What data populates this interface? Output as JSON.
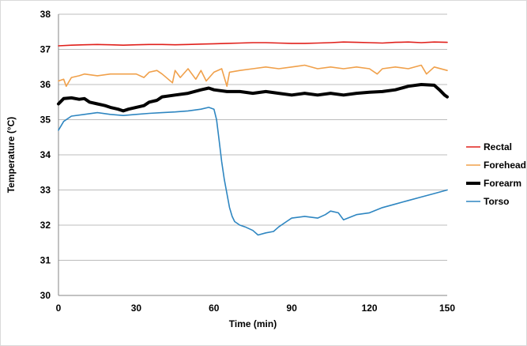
{
  "chart_data": {
    "type": "line",
    "title": "",
    "xlabel": "Time (min)",
    "ylabel": "Temperature (°C)",
    "xlim": [
      0,
      150
    ],
    "ylim": [
      30,
      38
    ],
    "x_ticks": [
      "0",
      "30",
      "60",
      "90",
      "120",
      "150"
    ],
    "x_tick_values": [
      0,
      30,
      60,
      90,
      120,
      150
    ],
    "y_ticks": [
      "30",
      "31",
      "32",
      "33",
      "34",
      "35",
      "36",
      "37",
      "38"
    ],
    "y_tick_values": [
      30,
      31,
      32,
      33,
      34,
      35,
      36,
      37,
      38
    ],
    "grid": "horizontal",
    "legend_position": "right",
    "series": [
      {
        "name": "Rectal",
        "color": "#e0201b",
        "line_width": "thin",
        "x": [
          0,
          5,
          10,
          15,
          20,
          25,
          30,
          35,
          40,
          45,
          50,
          55,
          60,
          65,
          70,
          75,
          80,
          85,
          90,
          95,
          100,
          105,
          110,
          115,
          120,
          125,
          130,
          135,
          140,
          145,
          150
        ],
        "values": [
          37.1,
          37.12,
          37.13,
          37.14,
          37.13,
          37.12,
          37.13,
          37.14,
          37.14,
          37.13,
          37.14,
          37.15,
          37.16,
          37.17,
          37.18,
          37.19,
          37.19,
          37.18,
          37.17,
          37.17,
          37.18,
          37.19,
          37.21,
          37.2,
          37.19,
          37.18,
          37.2,
          37.21,
          37.19,
          37.21,
          37.2
        ]
      },
      {
        "name": "Forehead",
        "color": "#f0a04a",
        "line_width": "thin",
        "x": [
          0,
          2,
          3,
          5,
          8,
          10,
          15,
          20,
          25,
          30,
          33,
          35,
          38,
          40,
          44,
          45,
          47,
          50,
          53,
          55,
          57,
          60,
          63,
          65,
          66,
          70,
          75,
          80,
          85,
          90,
          95,
          100,
          105,
          110,
          115,
          120,
          123,
          125,
          130,
          135,
          140,
          142,
          145,
          150
        ],
        "values": [
          36.1,
          36.15,
          35.95,
          36.2,
          36.25,
          36.3,
          36.25,
          36.3,
          36.3,
          36.3,
          36.2,
          36.35,
          36.4,
          36.3,
          36.05,
          36.4,
          36.2,
          36.45,
          36.15,
          36.4,
          36.1,
          36.35,
          36.45,
          35.95,
          36.35,
          36.4,
          36.45,
          36.5,
          36.45,
          36.5,
          36.55,
          36.45,
          36.5,
          36.45,
          36.5,
          36.45,
          36.3,
          36.45,
          36.5,
          36.45,
          36.55,
          36.3,
          36.5,
          36.4
        ]
      },
      {
        "name": "Forearm",
        "color": "#000000",
        "line_width": "thick",
        "x": [
          0,
          2,
          5,
          8,
          10,
          12,
          15,
          18,
          20,
          23,
          25,
          27,
          30,
          33,
          35,
          38,
          40,
          45,
          50,
          55,
          58,
          60,
          65,
          70,
          75,
          80,
          85,
          90,
          95,
          100,
          105,
          110,
          115,
          120,
          125,
          130,
          135,
          140,
          145,
          147,
          149,
          150
        ],
        "values": [
          35.45,
          35.6,
          35.62,
          35.58,
          35.6,
          35.5,
          35.45,
          35.4,
          35.35,
          35.3,
          35.25,
          35.3,
          35.35,
          35.4,
          35.5,
          35.55,
          35.65,
          35.7,
          35.75,
          35.85,
          35.9,
          35.85,
          35.8,
          35.8,
          35.75,
          35.8,
          35.75,
          35.7,
          35.75,
          35.7,
          35.75,
          35.7,
          35.75,
          35.78,
          35.8,
          35.85,
          35.95,
          36.0,
          35.98,
          35.85,
          35.7,
          35.65
        ]
      },
      {
        "name": "Torso",
        "color": "#2e86c1",
        "line_width": "thin",
        "x": [
          0,
          2,
          5,
          10,
          15,
          20,
          25,
          30,
          35,
          40,
          45,
          50,
          55,
          58,
          60,
          61,
          62,
          63,
          64,
          65,
          66,
          67,
          68,
          70,
          72,
          75,
          77,
          80,
          83,
          85,
          88,
          90,
          95,
          100,
          103,
          105,
          108,
          110,
          115,
          120,
          125,
          130,
          135,
          140,
          145,
          150
        ],
        "values": [
          34.7,
          34.95,
          35.1,
          35.15,
          35.2,
          35.15,
          35.12,
          35.15,
          35.18,
          35.2,
          35.22,
          35.25,
          35.3,
          35.35,
          35.3,
          35.0,
          34.4,
          33.8,
          33.3,
          32.9,
          32.5,
          32.25,
          32.1,
          32.0,
          31.95,
          31.85,
          31.72,
          31.78,
          31.82,
          31.95,
          32.1,
          32.2,
          32.25,
          32.2,
          32.3,
          32.4,
          32.35,
          32.15,
          32.3,
          32.35,
          32.5,
          32.6,
          32.7,
          32.8,
          32.9,
          33.0
        ]
      }
    ]
  }
}
